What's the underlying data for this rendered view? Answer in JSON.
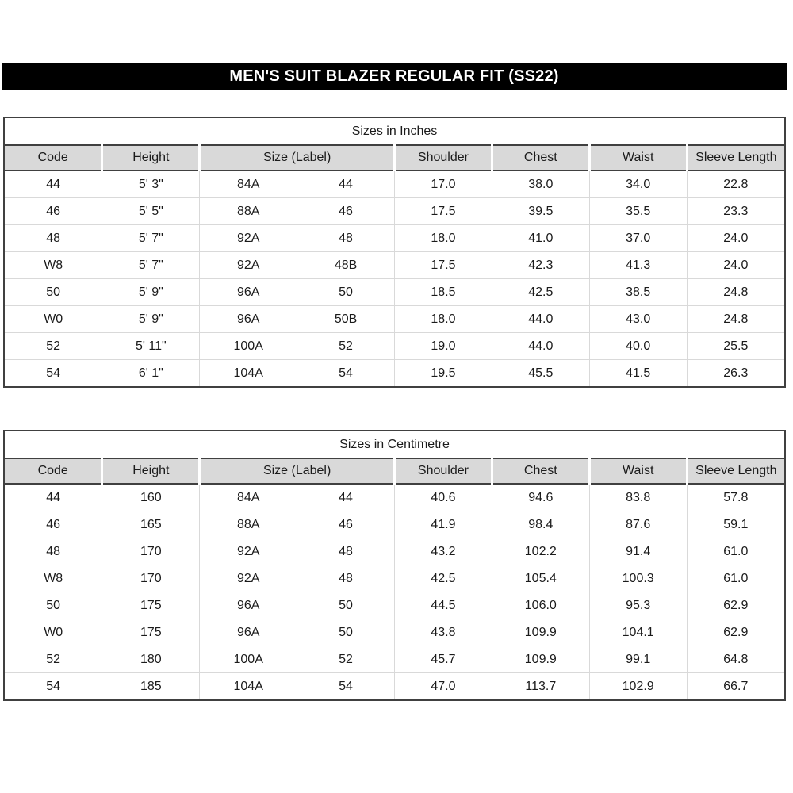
{
  "title_bar": {
    "text": "MEN'S SUIT BLAZER REGULAR FIT (SS22)"
  },
  "colors": {
    "banner_bg": "#000000",
    "banner_text": "#ffffff",
    "header_bg": "#d9d9d9",
    "border_dark": "#404040",
    "border_light": "#d9d9d9",
    "text": "#1b1b1b",
    "page_bg": "#ffffff"
  },
  "tables": [
    {
      "caption": "Sizes in Inches",
      "headers": [
        {
          "label": "Code",
          "span": 1
        },
        {
          "label": "Height",
          "span": 1
        },
        {
          "label": "Size (Label)",
          "span": 2
        },
        {
          "label": "Shoulder",
          "span": 1
        },
        {
          "label": "Chest",
          "span": 1
        },
        {
          "label": "Waist",
          "span": 1
        },
        {
          "label": "Sleeve Length",
          "span": 1
        }
      ],
      "rows": [
        [
          "44",
          "5' 3\"",
          "84A",
          "44",
          "17.0",
          "38.0",
          "34.0",
          "22.8"
        ],
        [
          "46",
          "5' 5\"",
          "88A",
          "46",
          "17.5",
          "39.5",
          "35.5",
          "23.3"
        ],
        [
          "48",
          "5' 7\"",
          "92A",
          "48",
          "18.0",
          "41.0",
          "37.0",
          "24.0"
        ],
        [
          "W8",
          "5' 7\"",
          "92A",
          "48B",
          "17.5",
          "42.3",
          "41.3",
          "24.0"
        ],
        [
          "50",
          "5' 9\"",
          "96A",
          "50",
          "18.5",
          "42.5",
          "38.5",
          "24.8"
        ],
        [
          "W0",
          "5' 9\"",
          "96A",
          "50B",
          "18.0",
          "44.0",
          "43.0",
          "24.8"
        ],
        [
          "52",
          "5' 11\"",
          "100A",
          "52",
          "19.0",
          "44.0",
          "40.0",
          "25.5"
        ],
        [
          "54",
          "6' 1\"",
          "104A",
          "54",
          "19.5",
          "45.5",
          "41.5",
          "26.3"
        ]
      ]
    },
    {
      "caption": "Sizes in Centimetre",
      "headers": [
        {
          "label": "Code",
          "span": 1
        },
        {
          "label": "Height",
          "span": 1
        },
        {
          "label": "Size (Label)",
          "span": 2
        },
        {
          "label": "Shoulder",
          "span": 1
        },
        {
          "label": "Chest",
          "span": 1
        },
        {
          "label": "Waist",
          "span": 1
        },
        {
          "label": "Sleeve Length",
          "span": 1
        }
      ],
      "rows": [
        [
          "44",
          "160",
          "84A",
          "44",
          "40.6",
          "94.6",
          "83.8",
          "57.8"
        ],
        [
          "46",
          "165",
          "88A",
          "46",
          "41.9",
          "98.4",
          "87.6",
          "59.1"
        ],
        [
          "48",
          "170",
          "92A",
          "48",
          "43.2",
          "102.2",
          "91.4",
          "61.0"
        ],
        [
          "W8",
          "170",
          "92A",
          "48",
          "42.5",
          "105.4",
          "100.3",
          "61.0"
        ],
        [
          "50",
          "175",
          "96A",
          "50",
          "44.5",
          "106.0",
          "95.3",
          "62.9"
        ],
        [
          "W0",
          "175",
          "96A",
          "50",
          "43.8",
          "109.9",
          "104.1",
          "62.9"
        ],
        [
          "52",
          "180",
          "100A",
          "52",
          "45.7",
          "109.9",
          "99.1",
          "64.8"
        ],
        [
          "54",
          "185",
          "104A",
          "54",
          "47.0",
          "113.7",
          "102.9",
          "66.7"
        ]
      ]
    }
  ]
}
